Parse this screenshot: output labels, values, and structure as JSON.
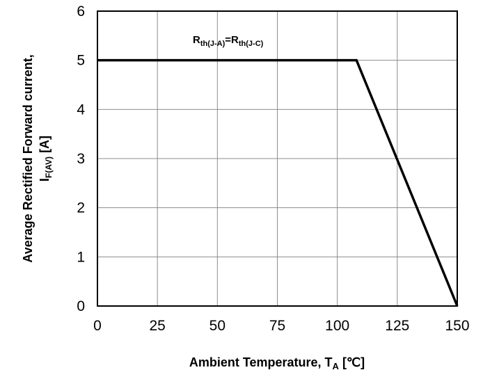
{
  "chart_data": {
    "type": "line",
    "title": "",
    "xlabel": {
      "main": "Ambient Temperature, T",
      "sub": "A",
      "unit": " [℃]"
    },
    "ylabel": {
      "line1": "Average Rectified Forward current,",
      "line2_main": "I",
      "line2_sub": "F(AV)",
      "line2_unit": " [A]"
    },
    "xlim": [
      0,
      150
    ],
    "ylim": [
      0,
      6
    ],
    "x_ticks": [
      "0",
      "25",
      "50",
      "75",
      "100",
      "125",
      "150"
    ],
    "y_ticks": [
      "0",
      "1",
      "2",
      "3",
      "4",
      "5",
      "6"
    ],
    "grid": true,
    "series": [
      {
        "x": [
          0,
          108,
          150
        ],
        "y": [
          5,
          5,
          0
        ]
      }
    ],
    "annotation": {
      "r1": "R",
      "s1": "th(J-A)",
      "eq": "=",
      "r2": "R",
      "s2": "th(J-C)"
    }
  }
}
